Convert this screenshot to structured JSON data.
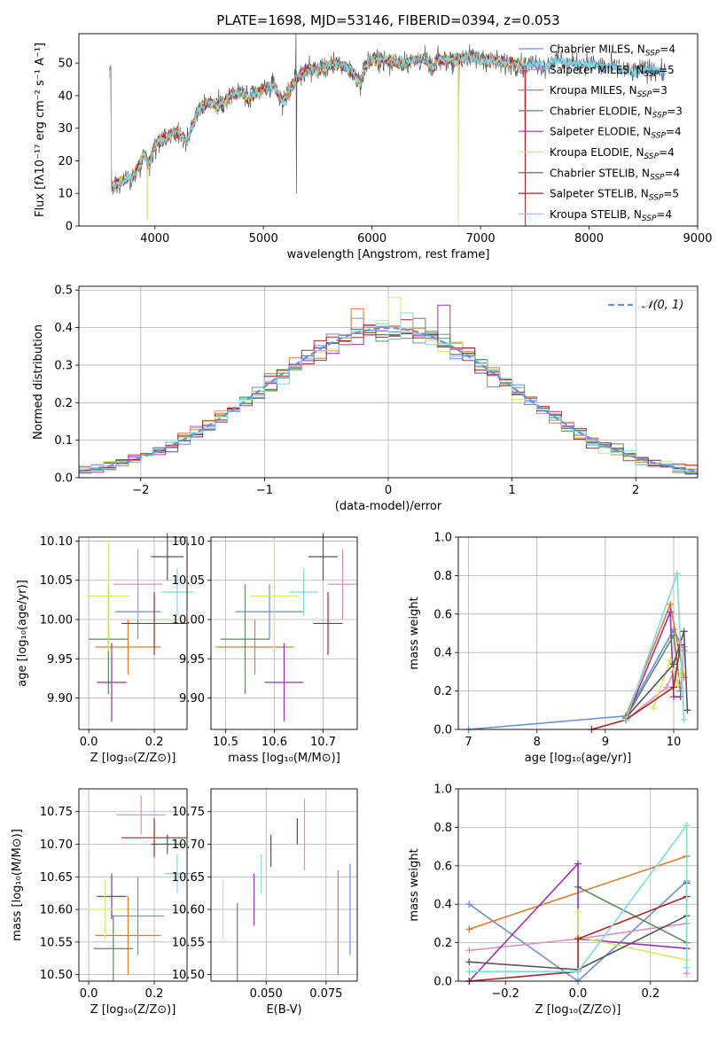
{
  "colors": {
    "Chabrier MILES": "#6a8fdc",
    "Salpeter MILES": "#e38fbc",
    "Kroupa MILES": "#de7a2c",
    "Chabrier ELODIE": "#5c8a5c",
    "Salpeter ELODIE": "#9b30b0",
    "Kroupa ELODIE": "#d6e86b",
    "Chabrier STELIB": "#555555",
    "Salpeter STELIB": "#b22222",
    "Kroupa STELIB": "#7fdbdb",
    "normal": "#6a8fdc"
  },
  "chart_data": [
    {
      "type": "line",
      "title": "PLATE=1698, MJD=53146, FIBERID=0394, z=0.053",
      "xlabel": "wavelength [Angstrom, rest frame]",
      "ylabel": "Flux [fλ10⁻¹⁷ erg cm⁻² s⁻¹ A⁻¹]",
      "xlim": [
        3300,
        9000
      ],
      "ylim": [
        0,
        59
      ],
      "xticks": [
        "4000",
        "5000",
        "6000",
        "7000",
        "8000",
        "9000"
      ],
      "yticks": [
        "0",
        "10",
        "20",
        "30",
        "40",
        "50"
      ],
      "legend": [
        {
          "name": "Chabrier MILES, N",
          "sub": "SSP",
          "tail": "=4"
        },
        {
          "name": "Salpeter MILES, N",
          "sub": "SSP",
          "tail": "=5"
        },
        {
          "name": "Kroupa MILES, N",
          "sub": "SSP",
          "tail": "=3"
        },
        {
          "name": "Chabrier ELODIE, N",
          "sub": "SSP",
          "tail": "=3"
        },
        {
          "name": "Salpeter ELODIE, N",
          "sub": "SSP",
          "tail": "=4"
        },
        {
          "name": "Kroupa ELODIE, N",
          "sub": "SSP",
          "tail": "=4"
        },
        {
          "name": "Chabrier STELIB, N",
          "sub": "SSP",
          "tail": "=4"
        },
        {
          "name": "Salpeter STELIB, N",
          "sub": "SSP",
          "tail": "=5"
        },
        {
          "name": "Kroupa STELIB, N",
          "sub": "SSP",
          "tail": "=4"
        }
      ],
      "legend_position": "right",
      "spectrum_anchors": {
        "x": [
          3600,
          3700,
          3800,
          3900,
          3950,
          4000,
          4100,
          4200,
          4300,
          4400,
          4500,
          4600,
          4700,
          4800,
          4861,
          4900,
          5000,
          5100,
          5175,
          5300,
          5400,
          5500,
          5600,
          5700,
          5800,
          5890,
          5950,
          6000,
          6100,
          6200,
          6300,
          6400,
          6500,
          6563,
          6600,
          6700,
          6800,
          6900,
          7000,
          7100,
          7200,
          7300,
          7400,
          7500,
          7600,
          7700,
          7800,
          7900,
          8000,
          8100,
          8200,
          8300,
          8400,
          8500,
          8600,
          8700
        ],
        "y": [
          12,
          14,
          15,
          22,
          19,
          25,
          27,
          29,
          26,
          36,
          38,
          37,
          40,
          41,
          39,
          40,
          42,
          43,
          38,
          45,
          48,
          48,
          49,
          50,
          48,
          44,
          50,
          51,
          51,
          50,
          50,
          51,
          51,
          48,
          51,
          51,
          51,
          52,
          51,
          51,
          50,
          50,
          49,
          50,
          49,
          51,
          50,
          50,
          50,
          49,
          49,
          48,
          47,
          48,
          48,
          47
        ]
      },
      "series_x_range": [
        3580,
        8700
      ]
    },
    {
      "type": "histogram",
      "xlabel": "(data-model)/error",
      "ylabel": "Normed distribution",
      "xlim": [
        -2.5,
        2.5
      ],
      "ylim": [
        0,
        0.51
      ],
      "xticks": [
        "−2",
        "−1",
        "0",
        "1",
        "2"
      ],
      "yticks": [
        "0.0",
        "0.1",
        "0.2",
        "0.3",
        "0.4",
        "0.5"
      ],
      "bin_width": 0.1,
      "normal_label": "𝒩(0, 1)",
      "legend_position": "upper right",
      "notable_peaks": {
        "0.0": 0.48,
        "-0.3": 0.45,
        "0.4": 0.46
      }
    },
    {
      "type": "scatter",
      "xlabel": "Z [log₁₀(Z/Z⊙)]",
      "ylabel": "age  [log₁₀(age/yr)]",
      "xlim": [
        -0.03,
        0.3
      ],
      "ylim": [
        9.86,
        10.105
      ],
      "xticks": [
        "0.0",
        "0.2"
      ],
      "yticks": [
        "9.90",
        "9.95",
        "10.00",
        "10.05",
        "10.10"
      ],
      "points": [
        {
          "name": "Chabrier MILES",
          "x": 0.15,
          "xerr": 0.07,
          "y": 10.01,
          "yerr": 0.035
        },
        {
          "name": "Salpeter MILES",
          "x": 0.15,
          "xerr": 0.075,
          "y": 10.045,
          "yerr": 0.045
        },
        {
          "name": "Kroupa MILES",
          "x": 0.12,
          "xerr": 0.1,
          "y": 9.965,
          "yerr": 0.035
        },
        {
          "name": "Chabrier ELODIE",
          "x": 0.06,
          "xerr": 0.06,
          "y": 9.975,
          "yerr": 0.07
        },
        {
          "name": "Salpeter ELODIE",
          "x": 0.07,
          "xerr": 0.045,
          "y": 9.92,
          "yerr": 0.05
        },
        {
          "name": "Kroupa ELODIE",
          "x": 0.06,
          "xerr": 0.065,
          "y": 10.03,
          "yerr": 0.07
        },
        {
          "name": "Chabrier STELIB",
          "x": 0.24,
          "xerr": 0.05,
          "y": 10.08,
          "yerr": 0.03
        },
        {
          "name": "Salpeter STELIB",
          "x": 0.2,
          "xerr": 0.1,
          "y": 9.995,
          "yerr": 0.04
        },
        {
          "name": "Kroupa STELIB",
          "x": 0.27,
          "xerr": 0.05,
          "y": 10.035,
          "yerr": 0.03
        }
      ]
    },
    {
      "type": "scatter",
      "xlabel": "mass [log₁₀(M/M⊙)]",
      "ylabel": "",
      "xlim": [
        10.47,
        10.77
      ],
      "ylim": [
        9.86,
        10.105
      ],
      "xticks": [
        "10.5",
        "10.6",
        "10.7"
      ],
      "yticks": [
        "9.90",
        "9.95",
        "10.00",
        "10.05",
        "10.10"
      ],
      "points": [
        {
          "name": "Chabrier MILES",
          "x": 10.59,
          "xerr": 0.07,
          "y": 10.01,
          "yerr": 0.035
        },
        {
          "name": "Salpeter MILES",
          "x": 10.74,
          "xerr": 0.03,
          "y": 10.045,
          "yerr": 0.045
        },
        {
          "name": "Kroupa MILES",
          "x": 10.56,
          "xerr": 0.08,
          "y": 9.965,
          "yerr": 0.035
        },
        {
          "name": "Chabrier ELODIE",
          "x": 10.54,
          "xerr": 0.05,
          "y": 9.975,
          "yerr": 0.07
        },
        {
          "name": "Salpeter ELODIE",
          "x": 10.62,
          "xerr": 0.04,
          "y": 9.92,
          "yerr": 0.05
        },
        {
          "name": "Kroupa ELODIE",
          "x": 10.6,
          "xerr": 0.05,
          "y": 10.03,
          "yerr": 0.07
        },
        {
          "name": "Chabrier STELIB",
          "x": 10.7,
          "xerr": 0.03,
          "y": 10.08,
          "yerr": 0.03
        },
        {
          "name": "Salpeter STELIB",
          "x": 10.71,
          "xerr": 0.03,
          "y": 9.995,
          "yerr": 0.04
        },
        {
          "name": "Kroupa STELIB",
          "x": 10.66,
          "xerr": 0.03,
          "y": 10.035,
          "yerr": 0.03
        }
      ]
    },
    {
      "type": "line",
      "xlabel": "age  [log₁₀(age/yr)]",
      "ylabel": "mass weight",
      "xlim": [
        6.85,
        10.35
      ],
      "ylim": [
        0,
        1
      ],
      "xticks": [
        "7",
        "8",
        "9",
        "10"
      ],
      "yticks": [
        "0.0",
        "0.2",
        "0.4",
        "0.6",
        "0.8",
        "1.0"
      ],
      "series": [
        {
          "name": "Chabrier MILES",
          "x": [
            7.0,
            9.3,
            10.0,
            10.15
          ],
          "y": [
            0.0,
            0.07,
            0.52,
            0.41
          ]
        },
        {
          "name": "Salpeter MILES",
          "x": [
            9.3,
            9.9,
            10.0,
            10.1,
            10.15
          ],
          "y": [
            0.05,
            0.22,
            0.3,
            0.2,
            0.43
          ]
        },
        {
          "name": "Kroupa MILES",
          "x": [
            9.3,
            9.95,
            10.15
          ],
          "y": [
            0.07,
            0.65,
            0.27
          ]
        },
        {
          "name": "Chabrier ELODIE",
          "x": [
            9.3,
            10.0,
            10.1
          ],
          "y": [
            0.06,
            0.49,
            0.2
          ]
        },
        {
          "name": "Salpeter ELODIE",
          "x": [
            9.3,
            9.95,
            10.0,
            10.1
          ],
          "y": [
            0.05,
            0.61,
            0.17,
            0.17
          ]
        },
        {
          "name": "Kroupa ELODIE",
          "x": [
            9.7,
            9.95,
            10.05,
            10.1
          ],
          "y": [
            0.11,
            0.36,
            0.23,
            0.3
          ]
        },
        {
          "name": "Chabrier STELIB",
          "x": [
            9.3,
            10.0,
            10.15,
            10.2
          ],
          "y": [
            0.06,
            0.34,
            0.51,
            0.1
          ]
        },
        {
          "name": "Salpeter STELIB",
          "x": [
            8.8,
            9.3,
            10.0,
            10.1
          ],
          "y": [
            0.0,
            0.05,
            0.22,
            0.44
          ]
        },
        {
          "name": "Kroupa STELIB",
          "x": [
            9.3,
            10.05,
            10.15
          ],
          "y": [
            0.05,
            0.81,
            0.05
          ]
        }
      ]
    },
    {
      "type": "scatter",
      "xlabel": "Z [log₁₀(Z/Z⊙)]",
      "ylabel": "mass [log₁₀(M/M⊙)]",
      "xlim": [
        -0.03,
        0.3
      ],
      "ylim": [
        10.49,
        10.785
      ],
      "xticks": [
        "0.0",
        "0.2"
      ],
      "yticks": [
        "10.50",
        "10.55",
        "10.60",
        "10.65",
        "10.70",
        "10.75"
      ],
      "points": [
        {
          "name": "Chabrier MILES",
          "x": 0.15,
          "xerr": 0.08,
          "y": 10.59,
          "yerr": 0.06
        },
        {
          "name": "Salpeter MILES",
          "x": 0.16,
          "xerr": 0.075,
          "y": 10.745,
          "yerr": 0.03
        },
        {
          "name": "Kroupa MILES",
          "x": 0.12,
          "xerr": 0.1,
          "y": 10.56,
          "yerr": 0.06
        },
        {
          "name": "Chabrier ELODIE",
          "x": 0.075,
          "xerr": 0.06,
          "y": 10.54,
          "yerr": 0.05
        },
        {
          "name": "Salpeter ELODIE",
          "x": 0.07,
          "xerr": 0.045,
          "y": 10.62,
          "yerr": 0.035
        },
        {
          "name": "Kroupa ELODIE",
          "x": 0.05,
          "xerr": 0.055,
          "y": 10.6,
          "yerr": 0.045
        },
        {
          "name": "Chabrier STELIB",
          "x": 0.24,
          "xerr": 0.05,
          "y": 10.7,
          "yerr": 0.015
        },
        {
          "name": "Salpeter STELIB",
          "x": 0.2,
          "xerr": 0.1,
          "y": 10.71,
          "yerr": 0.03
        },
        {
          "name": "Kroupa STELIB",
          "x": 0.27,
          "xerr": 0.04,
          "y": 10.655,
          "yerr": 0.03
        }
      ]
    },
    {
      "type": "scatter",
      "xlabel": "E(B-V)",
      "ylabel": "",
      "xlim": [
        0.027,
        0.088
      ],
      "ylim": [
        10.49,
        10.785
      ],
      "xticks": [
        "0.050",
        "0.075"
      ],
      "yticks": [
        "10.50",
        "10.55",
        "10.60",
        "10.65",
        "10.70",
        "10.75"
      ],
      "points": [
        {
          "name": "Chabrier MILES",
          "x": 0.085,
          "y": 10.6,
          "yerr": 0.07
        },
        {
          "name": "Salpeter MILES",
          "x": 0.066,
          "y": 10.715,
          "yerr": 0.055
        },
        {
          "name": "Kroupa MILES",
          "x": 0.08,
          "y": 10.58,
          "yerr": 0.08
        },
        {
          "name": "Chabrier ELODIE",
          "x": 0.038,
          "y": 10.55,
          "yerr": 0.06
        },
        {
          "name": "Salpeter ELODIE",
          "x": 0.045,
          "y": 10.615,
          "yerr": 0.04
        },
        {
          "name": "Kroupa ELODIE",
          "x": 0.032,
          "y": 10.6,
          "yerr": 0.045
        },
        {
          "name": "Chabrier STELIB",
          "x": 0.052,
          "y": 10.69,
          "yerr": 0.025
        },
        {
          "name": "Salpeter STELIB",
          "x": 0.063,
          "y": 10.72,
          "yerr": 0.02
        },
        {
          "name": "Kroupa STELIB",
          "x": 0.048,
          "y": 10.655,
          "yerr": 0.03
        }
      ]
    },
    {
      "type": "line",
      "xlabel": "Z [log₁₀(Z/Z⊙)]",
      "ylabel": "mass weight",
      "xlim": [
        -0.33,
        0.33
      ],
      "ylim": [
        0,
        1
      ],
      "xticks": [
        "−0.2",
        "0.0",
        "0.2"
      ],
      "yticks": [
        "0.0",
        "0.2",
        "0.4",
        "0.6",
        "0.8",
        "1.0"
      ],
      "series": [
        {
          "name": "Chabrier MILES",
          "x": [
            -0.3,
            0.0,
            0.3,
            0.3
          ],
          "y": [
            0.4,
            0.0,
            0.52,
            0.17
          ]
        },
        {
          "name": "Salpeter MILES",
          "x": [
            -0.3,
            0.0,
            0.3,
            0.3
          ],
          "y": [
            0.16,
            0.22,
            0.3,
            0.04
          ]
        },
        {
          "name": "Kroupa MILES",
          "x": [
            -0.3,
            0.3
          ],
          "y": [
            0.27,
            0.65
          ]
        },
        {
          "name": "Chabrier ELODIE",
          "x": [
            0.0,
            0.3
          ],
          "y": [
            0.49,
            0.2
          ]
        },
        {
          "name": "Salpeter ELODIE",
          "x": [
            -0.3,
            0.0,
            0.0,
            0.3
          ],
          "y": [
            0.0,
            0.61,
            0.22,
            0.17
          ]
        },
        {
          "name": "Kroupa ELODIE",
          "x": [
            0.0,
            0.0,
            0.3
          ],
          "y": [
            0.36,
            0.23,
            0.11
          ]
        },
        {
          "name": "Chabrier STELIB",
          "x": [
            -0.3,
            0.0,
            0.3,
            0.3
          ],
          "y": [
            0.1,
            0.06,
            0.34,
            0.51
          ]
        },
        {
          "name": "Salpeter STELIB",
          "x": [
            -0.3,
            0.0,
            0.0,
            0.3
          ],
          "y": [
            0.0,
            0.05,
            0.22,
            0.44
          ]
        },
        {
          "name": "Kroupa STELIB",
          "x": [
            -0.3,
            0.0,
            0.3,
            0.3
          ],
          "y": [
            0.05,
            0.05,
            0.81,
            0.07
          ]
        }
      ]
    }
  ]
}
